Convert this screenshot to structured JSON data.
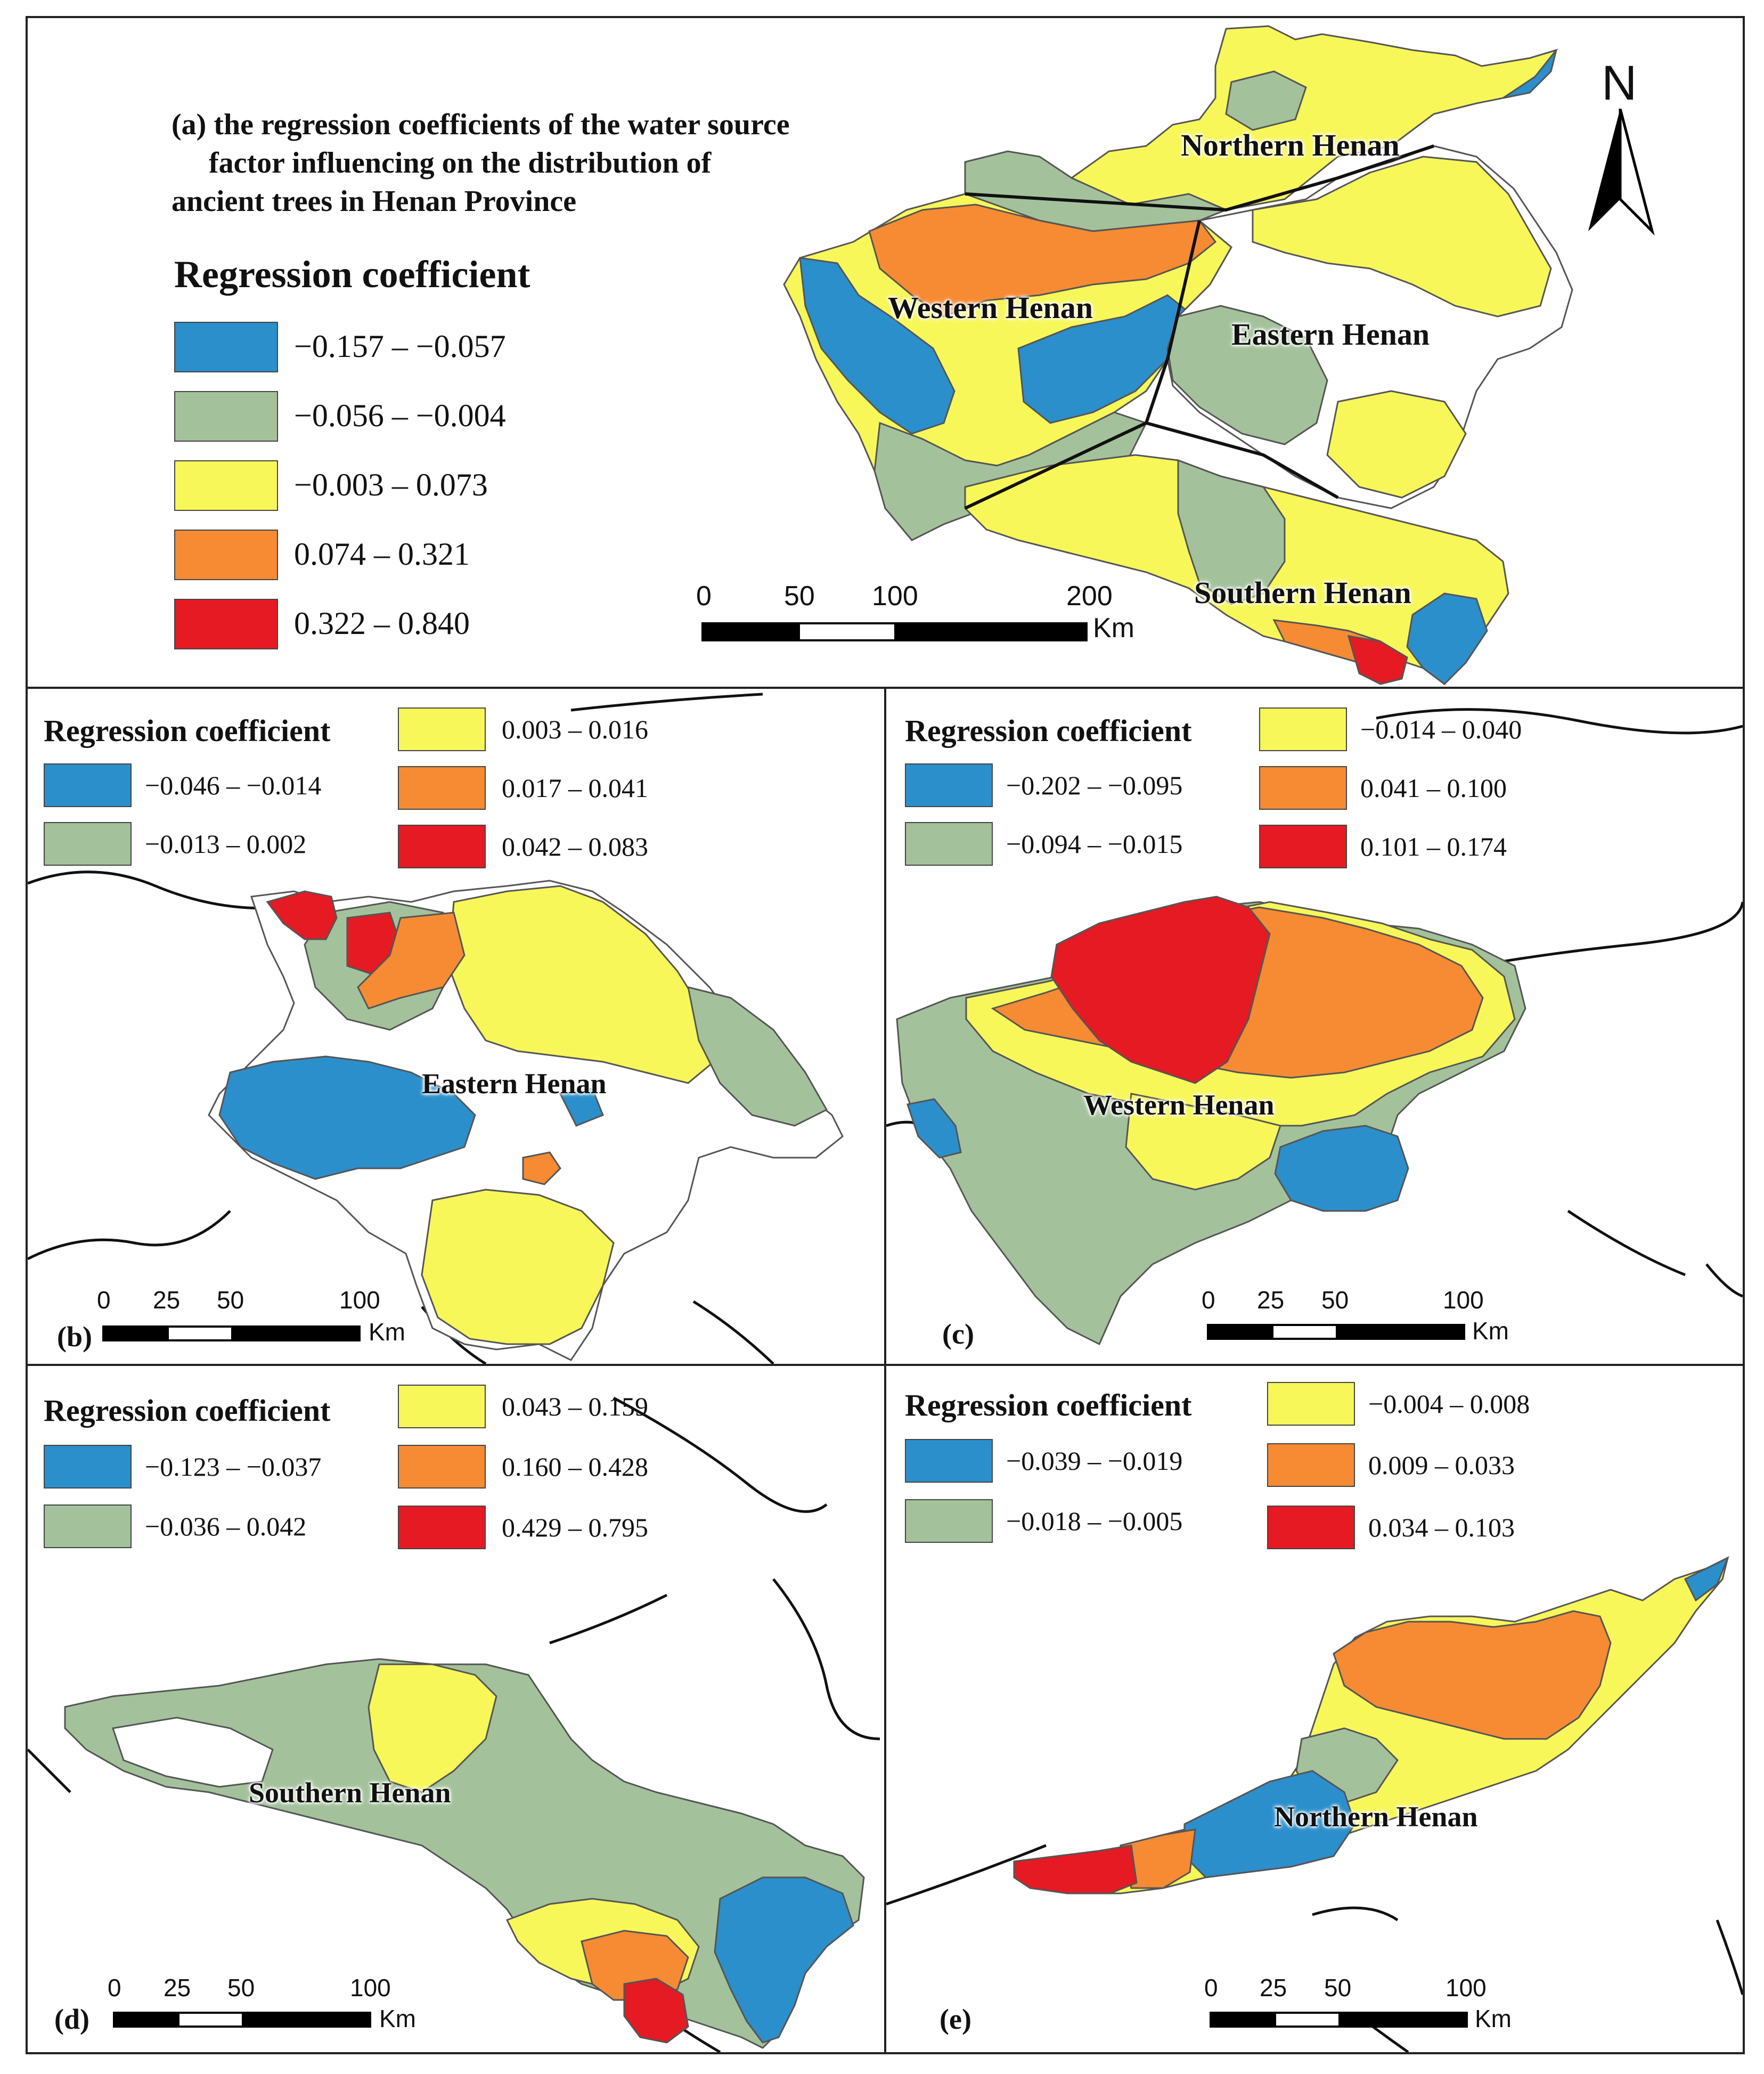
{
  "colors": {
    "blue": "#2b8fcb",
    "green": "#a3c29b",
    "yellow": "#f7f75a",
    "orange": "#f68b34",
    "red": "#e51a22",
    "boundary": "#555555"
  },
  "panel_a": {
    "title_line1": "(a) the regression coefficients of the water source",
    "title_line2": "factor  influencing  on  the  distribution  of",
    "title_line3": "ancient       trees       in       Henan       Province",
    "legend_title": "Regression coefficient",
    "legend": [
      {
        "label": "−0.157 – −0.057",
        "color": "blue"
      },
      {
        "label": "−0.056 – −0.004",
        "color": "green"
      },
      {
        "label": "−0.003 – 0.073",
        "color": "yellow"
      },
      {
        "label": "0.074 – 0.321",
        "color": "orange"
      },
      {
        "label": "0.322 – 0.840",
        "color": "red"
      }
    ],
    "regions": [
      "Northern Henan",
      "Western Henan",
      "Eastern Henan",
      "Southern Henan"
    ],
    "scale": {
      "ticks": [
        "0",
        "50",
        "100",
        "200"
      ],
      "unit": "Km"
    },
    "north_label": "N"
  },
  "panel_b": {
    "letter": "(b)",
    "legend_title": "Regression coefficient",
    "legend": [
      {
        "label": "−0.046 – −0.014",
        "color": "blue"
      },
      {
        "label": "−0.013 – 0.002",
        "color": "green"
      },
      {
        "label": "0.003 – 0.016",
        "color": "yellow"
      },
      {
        "label": "0.017 – 0.041",
        "color": "orange"
      },
      {
        "label": "0.042 – 0.083",
        "color": "red"
      }
    ],
    "region": "Eastern Henan",
    "scale": {
      "ticks": [
        "0",
        "25",
        "50",
        "100"
      ],
      "unit": "Km"
    }
  },
  "panel_c": {
    "letter": "(c)",
    "legend_title": "Regression coefficient",
    "legend": [
      {
        "label": "−0.202 – −0.095",
        "color": "blue"
      },
      {
        "label": "−0.094 – −0.015",
        "color": "green"
      },
      {
        "label": "−0.014 – 0.040",
        "color": "yellow"
      },
      {
        "label": "0.041 – 0.100",
        "color": "orange"
      },
      {
        "label": "0.101 – 0.174",
        "color": "red"
      }
    ],
    "region": "Western Henan",
    "scale": {
      "ticks": [
        "0",
        "25",
        "50",
        "100"
      ],
      "unit": "Km"
    }
  },
  "panel_d": {
    "letter": "(d)",
    "legend_title": "Regression coefficient",
    "legend": [
      {
        "label": "−0.123 – −0.037",
        "color": "blue"
      },
      {
        "label": "−0.036 – 0.042",
        "color": "green"
      },
      {
        "label": "0.043 – 0.159",
        "color": "yellow"
      },
      {
        "label": "0.160 – 0.428",
        "color": "orange"
      },
      {
        "label": "0.429 – 0.795",
        "color": "red"
      }
    ],
    "region": "Southern Henan",
    "scale": {
      "ticks": [
        "0",
        "25",
        "50",
        "100"
      ],
      "unit": "Km"
    }
  },
  "panel_e": {
    "letter": "(e)",
    "legend_title": "Regression coefficient",
    "legend": [
      {
        "label": "−0.039 – −0.019",
        "color": "blue"
      },
      {
        "label": "−0.018 – −0.005",
        "color": "green"
      },
      {
        "label": "−0.004 – 0.008",
        "color": "yellow"
      },
      {
        "label": "0.009 – 0.033",
        "color": "orange"
      },
      {
        "label": "0.034 – 0.103",
        "color": "red"
      }
    ],
    "region": "Northern Henan",
    "scale": {
      "ticks": [
        "0",
        "25",
        "50",
        "100"
      ],
      "unit": "Km"
    }
  }
}
